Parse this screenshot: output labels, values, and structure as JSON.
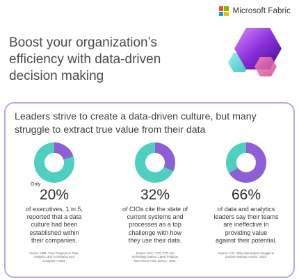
{
  "header": {
    "brand_name": "Microsoft Fabric",
    "logo_colors": [
      "#f25022",
      "#7fba00",
      "#00a4ef",
      "#ffb900"
    ]
  },
  "headline": {
    "lines": [
      "Boost your organization’s",
      "efficiency with data-driven",
      "decision making"
    ]
  },
  "card": {
    "title_lines": [
      "Leaders strive to create a data-driven culture, but many",
      "struggle to extract true value from their data"
    ],
    "border_color": "#b9a8e6"
  },
  "colors": {
    "teal": "#4fcfbf",
    "purple": "#8c5fd6"
  },
  "stats": [
    {
      "prefix": "Only",
      "value": "20%",
      "fraction": 0.2,
      "desc_lines": [
        "of executives, 1 in 5,",
        "reported that a data",
        "culture had been",
        "established within",
        "their companies."
      ],
      "source_lines": [
        "Source: HBR, “Your Progress on Data,",
        "Analytics, and AI Global at your",
        "Company?” 2021."
      ]
    },
    {
      "prefix": "",
      "value": "32%",
      "fraction": 0.32,
      "desc_lines": [
        "of CIOs cite the state of",
        "current systems and",
        "processes as a top",
        "challenge with how",
        "they use their data."
      ],
      "source_lines": [
        "Source: PwC, “CIO, CTO and",
        "technology leaders: Latest Findings",
        "from PwC’s Pulse Survey,” 2023."
      ]
    },
    {
      "prefix": "",
      "value": "66%",
      "fraction": 0.66,
      "desc_lines": [
        "of data and analytics",
        "leaders say their teams",
        "are ineffective in",
        "providing value",
        "against their potential."
      ],
      "source_lines": [
        "Source: CIO, “Why data leaders struggle to",
        "produce strategic results,” 2023."
      ]
    }
  ]
}
